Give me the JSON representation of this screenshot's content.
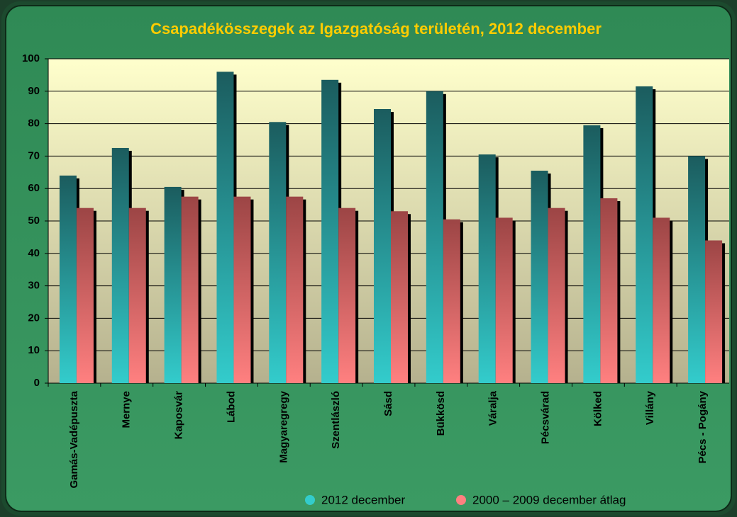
{
  "chart_data": {
    "type": "bar",
    "title": "Csapadékösszegek az Igazgatóság területén, 2012 december",
    "categories": [
      "Gamás-Vadépuszta",
      "Mernye",
      "Kaposvár",
      "Lábod",
      "Magyaregregy",
      "Szentlászló",
      "Sásd",
      "Bükkösd",
      "Váralja",
      "Pécsvárad",
      "Kölked",
      "Villány",
      "Pécs - Pogány"
    ],
    "series": [
      {
        "name": "2012 december",
        "color": "#33cccc",
        "values": [
          64,
          72.5,
          60.5,
          96,
          80.5,
          93.5,
          84.5,
          90,
          70.5,
          65.5,
          79.5,
          91.5,
          70
        ]
      },
      {
        "name": "2000 – 2009 december átlag",
        "color": "#ff8080",
        "values": [
          54,
          54,
          57.5,
          57.5,
          57.5,
          54,
          53,
          50.5,
          51,
          54,
          57,
          51,
          44
        ]
      }
    ],
    "ylim": [
      0,
      100
    ],
    "yticks": [
      0,
      10,
      20,
      30,
      40,
      50,
      60,
      70,
      80,
      90,
      100
    ],
    "grid": true
  }
}
